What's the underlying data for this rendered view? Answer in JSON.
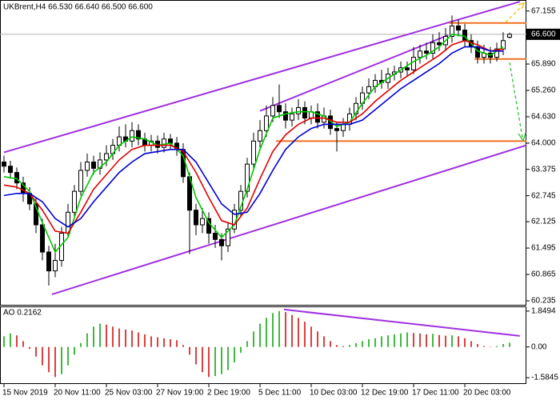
{
  "chart_data": [
    {
      "type": "candlestick",
      "title": "UKBrent,H4  66.530 66.640 66.500 66.600",
      "categories": [
        "15 Nov 2019",
        null,
        null,
        null,
        null,
        null,
        null,
        null,
        "20 Nov 11:00",
        null,
        null,
        null,
        null,
        null,
        null,
        null,
        "25 Nov 03:00",
        null,
        null,
        null,
        null,
        null,
        null,
        null,
        "27 Nov 19:00",
        null,
        null,
        null,
        null,
        null,
        null,
        null,
        "2 Dec 19:00",
        null,
        null,
        null,
        null,
        null,
        null,
        null,
        "5 Dec 11:00",
        null,
        null,
        null,
        null,
        null,
        null,
        null,
        "10 Dec 03:00",
        null,
        null,
        null,
        null,
        null,
        null,
        null,
        "12 Dec 19:00",
        null,
        null,
        null,
        null,
        null,
        null,
        null,
        "17 Dec 11:00",
        null,
        null,
        null,
        null,
        null,
        null,
        null,
        "20 Dec 03:00",
        null,
        null,
        null,
        null,
        null,
        null,
        null
      ],
      "open": [
        63.55,
        63.45,
        63.3,
        63.05,
        62.8,
        62.55,
        62.05,
        61.4,
        60.95,
        61.2,
        61.85,
        62.35,
        62.85,
        63.35,
        63.55,
        63.4,
        63.6,
        63.75,
        63.95,
        64.15,
        64.05,
        64.3,
        64.1,
        63.95,
        64.05,
        63.9,
        64.1,
        64.0,
        63.85,
        63.2,
        62.4,
        62.05,
        62.2,
        61.85,
        61.7,
        61.55,
        61.95,
        62.4,
        62.85,
        63.5,
        64.05,
        64.3,
        64.65,
        64.9,
        64.75,
        64.55,
        64.7,
        64.85,
        64.6,
        64.75,
        64.5,
        64.65,
        64.35,
        64.3,
        64.45,
        64.7,
        64.95,
        65.2,
        65.35,
        65.5,
        65.45,
        65.65,
        65.7,
        65.8,
        65.75,
        66.05,
        66.2,
        66.15,
        66.4,
        66.35,
        66.55,
        66.8,
        66.7,
        66.45,
        66.3,
        66.05,
        66.15,
        66.05,
        66.25,
        66.53
      ],
      "high": [
        63.7,
        63.58,
        63.42,
        63.2,
        62.95,
        62.7,
        62.2,
        61.55,
        61.6,
        62.0,
        62.55,
        63.0,
        63.55,
        63.75,
        63.7,
        63.78,
        63.95,
        64.1,
        64.4,
        64.45,
        64.5,
        64.45,
        64.25,
        64.2,
        64.18,
        64.25,
        64.22,
        64.15,
        64.0,
        63.3,
        62.55,
        62.45,
        62.35,
        62.05,
        61.85,
        62.1,
        62.55,
        63.0,
        63.65,
        64.25,
        64.55,
        64.9,
        65.1,
        65.4,
        64.95,
        64.85,
        65.05,
        65.0,
        64.9,
        64.95,
        64.85,
        64.8,
        64.5,
        64.6,
        64.85,
        65.1,
        65.35,
        65.55,
        65.65,
        65.75,
        65.8,
        65.85,
        65.95,
        65.95,
        66.3,
        66.35,
        66.4,
        66.6,
        66.65,
        66.75,
        67.05,
        66.95,
        66.85,
        66.6,
        66.45,
        66.35,
        66.3,
        66.4,
        66.65,
        66.64
      ],
      "low": [
        63.3,
        63.15,
        62.9,
        62.6,
        62.4,
        61.85,
        61.2,
        60.6,
        60.8,
        61.05,
        61.75,
        62.2,
        62.75,
        63.2,
        63.25,
        63.25,
        63.45,
        63.6,
        63.8,
        63.9,
        63.9,
        63.95,
        63.8,
        63.8,
        63.75,
        63.78,
        63.85,
        63.7,
        63.05,
        61.35,
        61.8,
        61.85,
        61.6,
        61.5,
        61.2,
        61.4,
        61.85,
        62.25,
        62.7,
        63.35,
        63.9,
        64.15,
        64.5,
        64.6,
        64.35,
        64.4,
        64.55,
        64.45,
        64.45,
        64.35,
        64.35,
        64.2,
        63.8,
        64.15,
        64.3,
        64.55,
        64.8,
        65.05,
        65.2,
        65.3,
        65.3,
        65.5,
        65.55,
        65.6,
        65.65,
        65.9,
        66.0,
        66.0,
        66.2,
        66.2,
        66.4,
        66.55,
        66.3,
        66.15,
        65.9,
        65.9,
        65.9,
        65.95,
        66.1,
        66.5
      ],
      "close": [
        63.45,
        63.3,
        63.05,
        62.8,
        62.55,
        62.05,
        61.4,
        60.95,
        61.2,
        61.85,
        62.35,
        62.85,
        63.35,
        63.55,
        63.4,
        63.6,
        63.75,
        63.95,
        64.15,
        64.05,
        64.3,
        64.1,
        63.95,
        64.05,
        63.9,
        64.1,
        64.0,
        63.85,
        63.2,
        62.4,
        62.05,
        62.2,
        61.85,
        61.7,
        61.55,
        61.95,
        62.4,
        62.85,
        63.5,
        64.05,
        64.3,
        64.65,
        64.9,
        64.75,
        64.55,
        64.7,
        64.85,
        64.6,
        64.75,
        64.5,
        64.65,
        64.35,
        64.3,
        64.45,
        64.7,
        64.95,
        65.2,
        65.35,
        65.5,
        65.45,
        65.65,
        65.7,
        65.8,
        65.75,
        66.05,
        66.2,
        66.15,
        66.4,
        66.35,
        66.55,
        66.8,
        66.7,
        66.45,
        66.3,
        66.05,
        66.15,
        66.05,
        66.25,
        66.45,
        66.6
      ],
      "up_color": "#ffffff",
      "down_color": "#000000",
      "wick_color": "#000000",
      "series": [
        {
          "color": "#00c800",
          "x": [
            0,
            2,
            4,
            6,
            8,
            10,
            12,
            14,
            16,
            18,
            20,
            22,
            24,
            26,
            28,
            30,
            32,
            34,
            36,
            38,
            40,
            42,
            44,
            46,
            48,
            50,
            52,
            54,
            56,
            58,
            60,
            62,
            64,
            66,
            68,
            70,
            72,
            74,
            76,
            78
          ],
          "values": [
            63.2,
            63.15,
            62.85,
            62.1,
            61.4,
            61.75,
            62.7,
            63.3,
            63.55,
            63.95,
            64.15,
            64.1,
            63.95,
            64.0,
            63.7,
            62.7,
            62.1,
            61.75,
            62.05,
            62.9,
            63.85,
            64.6,
            64.7,
            64.75,
            64.75,
            64.65,
            64.4,
            64.5,
            64.95,
            65.35,
            65.55,
            65.75,
            65.95,
            66.1,
            66.3,
            66.6,
            66.55,
            66.2,
            66.1,
            66.3
          ]
        },
        {
          "color": "#e00000",
          "x": [
            0,
            2,
            4,
            6,
            8,
            10,
            12,
            14,
            16,
            18,
            20,
            22,
            24,
            26,
            28,
            30,
            32,
            34,
            36,
            38,
            40,
            42,
            44,
            46,
            48,
            50,
            52,
            54,
            56,
            58,
            60,
            62,
            64,
            66,
            68,
            70,
            72,
            74,
            76,
            78
          ],
          "values": [
            63.0,
            62.95,
            62.8,
            62.4,
            61.9,
            61.85,
            62.35,
            62.9,
            63.25,
            63.6,
            63.85,
            63.95,
            63.95,
            63.95,
            63.8,
            63.3,
            62.7,
            62.15,
            62.05,
            62.45,
            63.15,
            63.8,
            64.2,
            64.45,
            64.6,
            64.6,
            64.5,
            64.5,
            64.7,
            65.0,
            65.25,
            65.5,
            65.7,
            65.9,
            66.1,
            66.35,
            66.45,
            66.35,
            66.2,
            66.25
          ]
        },
        {
          "color": "#0000d0",
          "x": [
            0,
            2,
            4,
            6,
            8,
            10,
            12,
            14,
            16,
            18,
            20,
            22,
            24,
            26,
            28,
            30,
            32,
            34,
            36,
            38,
            40,
            42,
            44,
            46,
            48,
            50,
            52,
            54,
            56,
            58,
            60,
            62,
            64,
            66,
            68,
            70,
            72,
            74,
            76,
            78
          ],
          "values": [
            62.75,
            62.8,
            62.8,
            62.6,
            62.2,
            62.0,
            62.2,
            62.6,
            62.95,
            63.3,
            63.55,
            63.75,
            63.8,
            63.85,
            63.85,
            63.55,
            63.05,
            62.55,
            62.3,
            62.35,
            62.8,
            63.35,
            63.85,
            64.15,
            64.35,
            64.45,
            64.45,
            64.45,
            64.55,
            64.8,
            65.05,
            65.3,
            65.5,
            65.7,
            65.9,
            66.15,
            66.3,
            66.3,
            66.2,
            66.2
          ]
        }
      ],
      "lines": [
        {
          "color": "#a030e0",
          "x": [
            0,
            80.6
          ],
          "y": [
            63.78,
            67.38
          ]
        },
        {
          "color": "#a030e0",
          "x": [
            7.5,
            81.6
          ],
          "y": [
            60.39,
            63.95
          ]
        },
        {
          "color": "#a030e0",
          "x": [
            40,
            69.4
          ],
          "y": [
            64.77,
            66.58
          ]
        },
        {
          "color": "#f07020",
          "x": [
            69.5,
            82
          ],
          "y": [
            66.87,
            66.87
          ]
        },
        {
          "color": "#f07020",
          "x": [
            73.5,
            82
          ],
          "y": [
            66.01,
            66.01
          ]
        },
        {
          "color": "#f07020",
          "x": [
            42.5,
            82
          ],
          "y": [
            64.05,
            64.05
          ]
        }
      ],
      "price_line": {
        "value": 66.6,
        "label": "66.600"
      },
      "ylim": [
        60.14,
        67.4
      ],
      "yticks": [
        67.155,
        {
          "value": 65.89,
          "label": "65.890"
        },
        {
          "value": 65.26,
          "label": "65.260"
        },
        {
          "value": 64.63,
          "label": "64.630"
        },
        {
          "value": 64,
          "label": "64.000"
        },
        63.375,
        62.745,
        62.125,
        61.495,
        60.865,
        60.235
      ]
    },
    {
      "type": "bar",
      "title": "AO 0.2162",
      "values": [
        0.55,
        0.7,
        0.6,
        0.3,
        -0.1,
        -0.5,
        -0.95,
        -1.3,
        -1.55,
        -1.4,
        -0.95,
        -0.4,
        0.2,
        0.7,
        1.05,
        1.2,
        1.15,
        1.05,
        0.95,
        0.9,
        0.85,
        0.75,
        0.65,
        0.55,
        0.5,
        0.45,
        0.4,
        0.35,
        0.1,
        -0.4,
        -0.9,
        -1.3,
        -1.55,
        -1.5,
        -1.4,
        -1.2,
        -0.8,
        -0.3,
        0.3,
        0.8,
        1.2,
        1.5,
        1.75,
        1.85,
        1.8,
        1.65,
        1.5,
        1.3,
        1.05,
        0.8,
        0.55,
        0.3,
        0.1,
        0.05,
        0.1,
        0.2,
        0.3,
        0.4,
        0.45,
        0.55,
        0.6,
        0.65,
        0.7,
        0.75,
        0.72,
        0.7,
        0.65,
        0.68,
        0.62,
        0.58,
        0.6,
        0.55,
        0.45,
        0.3,
        0.15,
        0.05,
        0.02,
        0.05,
        0.15,
        0.2162
      ],
      "up_color": "#00a000",
      "down_color": "#d00000",
      "lines": [
        {
          "color": "#a030e0",
          "x": [
            43.75,
            80.6
          ],
          "y": [
            1.93,
            0.57
          ]
        }
      ],
      "ylim": [
        -1.91,
        2.05
      ],
      "yticks": [
        1.8494,
        {
          "value": 0,
          "label": "0.00"
        },
        -1.5845
      ]
    }
  ]
}
